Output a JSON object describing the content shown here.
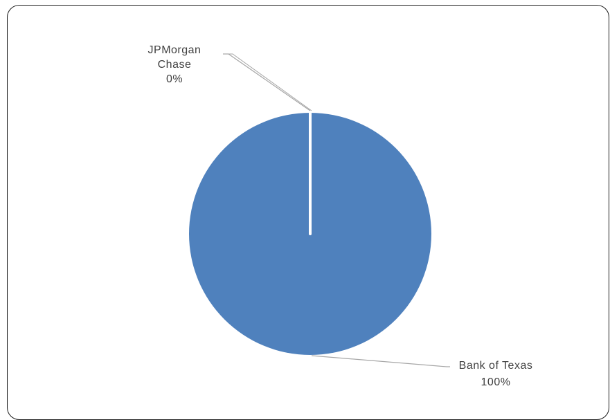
{
  "chart_data": {
    "type": "pie",
    "slices": [
      {
        "label": "Bank of Texas",
        "value": 100,
        "percent_label": "100%",
        "color": "#4f81bd"
      },
      {
        "label": "JPMorgan Chase",
        "value": 0,
        "percent_label": "0%",
        "color": "#4f81bd"
      }
    ],
    "title": "",
    "legend": "none",
    "leader_line_color": "#a6a6a6",
    "slice_border_color": "#ffffff"
  },
  "labels": {
    "jpm_line1": "JPMorgan",
    "jpm_line2": "Chase",
    "jpm_pct": "0%",
    "bot_line1": "Bank of Texas",
    "bot_pct": "100%"
  }
}
